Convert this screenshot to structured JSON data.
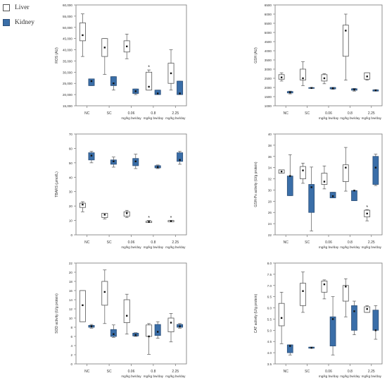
{
  "legend": [
    {
      "label": "Liver",
      "color": "#ffffff",
      "stroke": "#555555"
    },
    {
      "label": "Kidney",
      "color": "#3a6ea8",
      "stroke": "#2c4f78"
    }
  ],
  "categories": [
    {
      "line1": "NC",
      "line2": ""
    },
    {
      "line1": "SC",
      "line2": ""
    },
    {
      "line1": "0.06",
      "line2": "mg/kg bw/day"
    },
    {
      "line1": "0.8",
      "line2": "mg/kg bw/day"
    },
    {
      "line1": "2.25",
      "line2": "mg/kg bw/day"
    }
  ],
  "chart_data": [
    {
      "type": "boxplot",
      "id": "ros",
      "ylabel": "ROS (AU)",
      "ylim": [
        15000,
        60000
      ],
      "yticks": [
        15000,
        20000,
        25000,
        30000,
        35000,
        40000,
        45000,
        50000,
        55000,
        60000
      ],
      "ytick_labels": [
        "15,000",
        "20,000",
        "25,000",
        "30,000",
        "35,000",
        "40,000",
        "45,000",
        "50,000",
        "55,000",
        "60,000"
      ],
      "series": [
        {
          "name": "Liver",
          "boxes": [
            {
              "min": 37000,
              "q1": 44000,
              "median": 46500,
              "q3": 52000,
              "max": 56000,
              "mean": 46500
            },
            {
              "min": 29000,
              "q1": 37000,
              "median": 41000,
              "q3": 45000,
              "max": 45000,
              "mean": 41500
            },
            {
              "min": 36000,
              "q1": 39000,
              "median": 41500,
              "q3": 44000,
              "max": 47000,
              "mean": 41500
            },
            {
              "min": 22000,
              "q1": 22000,
              "median": 23500,
              "q3": 30000,
              "max": 31000,
              "mean": 23500,
              "sig": "*"
            },
            {
              "min": 22000,
              "q1": 25000,
              "median": 29500,
              "q3": 34000,
              "max": 40000,
              "mean": 29500
            }
          ]
        },
        {
          "name": "Kidney",
          "boxes": [
            {
              "min": 24000,
              "q1": 24000,
              "median": 26000,
              "q3": 27000,
              "max": 27000,
              "mean": 26000
            },
            {
              "min": 22000,
              "q1": 24000,
              "median": 25000,
              "q3": 28000,
              "max": 28000,
              "mean": 25000
            },
            {
              "min": 20000,
              "q1": 20500,
              "median": 21500,
              "q3": 22500,
              "max": 22500,
              "mean": 21500
            },
            {
              "min": 20000,
              "q1": 20000,
              "median": 20500,
              "q3": 22000,
              "max": 22000,
              "mean": 20500
            },
            {
              "min": 20000,
              "q1": 20000,
              "median": 20500,
              "q3": 26000,
              "max": 26000,
              "mean": 20500
            }
          ]
        }
      ]
    },
    {
      "type": "boxplot",
      "id": "gsh",
      "ylabel": "GSH (AU)",
      "ylim": [
        1000,
        6500
      ],
      "yticks": [
        1000,
        1500,
        2000,
        2500,
        3000,
        3500,
        4000,
        4500,
        5000,
        5500,
        6000,
        6500
      ],
      "ytick_labels": [
        "1000",
        "1500",
        "2000",
        "2500",
        "3000",
        "3500",
        "4000",
        "4500",
        "5000",
        "5500",
        "6000",
        "6500"
      ],
      "series": [
        {
          "name": "Liver",
          "boxes": [
            {
              "min": 2350,
              "q1": 2450,
              "median": 2550,
              "q3": 2700,
              "max": 2800,
              "mean": 2550
            },
            {
              "min": 2100,
              "q1": 2400,
              "median": 2500,
              "q3": 3000,
              "max": 3400,
              "mean": 2500
            },
            {
              "min": 2200,
              "q1": 2350,
              "median": 2500,
              "q3": 2700,
              "max": 2750,
              "mean": 2450
            },
            {
              "min": 2400,
              "q1": 3700,
              "median": 5100,
              "q3": 5400,
              "max": 6000,
              "mean": 5100
            },
            {
              "min": 2400,
              "q1": 2450,
              "median": 2600,
              "q3": 2800,
              "max": 2800,
              "mean": 2600
            }
          ]
        },
        {
          "name": "Kidney",
          "boxes": [
            {
              "min": 1650,
              "q1": 1700,
              "median": 1730,
              "q3": 1780,
              "max": 1800,
              "mean": 1730
            },
            {
              "min": 1950,
              "q1": 1950,
              "median": 1970,
              "q3": 1990,
              "max": 2000,
              "mean": 1970
            },
            {
              "min": 1900,
              "q1": 1920,
              "median": 1960,
              "q3": 2000,
              "max": 2000,
              "mean": 1960
            },
            {
              "min": 1800,
              "q1": 1850,
              "median": 1880,
              "q3": 1930,
              "max": 1950,
              "mean": 1880
            },
            {
              "min": 1800,
              "q1": 1800,
              "median": 1840,
              "q3": 1870,
              "max": 1880,
              "mean": 1840
            }
          ]
        }
      ]
    },
    {
      "type": "boxplot",
      "id": "tbars",
      "ylabel": "TBARS (µmol/L)",
      "ylim": [
        0,
        70
      ],
      "yticks": [
        0,
        10,
        20,
        30,
        40,
        50,
        60,
        70
      ],
      "ytick_labels": [
        "0",
        "10",
        "20",
        "30",
        "40",
        "50",
        "60",
        "70"
      ],
      "series": [
        {
          "name": "Liver",
          "boxes": [
            {
              "min": 16,
              "q1": 19,
              "median": 21,
              "q3": 22,
              "max": 23,
              "mean": 21
            },
            {
              "min": 11,
              "q1": 12,
              "median": 14,
              "q3": 15,
              "max": 15,
              "mean": 14
            },
            {
              "min": 12,
              "q1": 13,
              "median": 15,
              "q3": 16,
              "max": 17,
              "mean": 15
            },
            {
              "min": 8.5,
              "q1": 8.5,
              "median": 9,
              "q3": 9.5,
              "max": 10,
              "mean": 9,
              "sig": "*"
            },
            {
              "min": 9,
              "q1": 9,
              "median": 9.5,
              "q3": 10,
              "max": 10,
              "mean": 9.5,
              "sig": "*"
            }
          ]
        },
        {
          "name": "Kidney",
          "boxes": [
            {
              "min": 50,
              "q1": 52,
              "median": 55,
              "q3": 57,
              "max": 58,
              "mean": 55
            },
            {
              "min": 47,
              "q1": 49,
              "median": 51,
              "q3": 52,
              "max": 54,
              "mean": 51
            },
            {
              "min": 46,
              "q1": 48,
              "median": 51,
              "q3": 53,
              "max": 56,
              "mean": 51
            },
            {
              "min": 46,
              "q1": 46.5,
              "median": 47,
              "q3": 48,
              "max": 48.5,
              "mean": 47
            },
            {
              "min": 49,
              "q1": 51,
              "median": 52,
              "q3": 57,
              "max": 58,
              "mean": 52
            }
          ]
        }
      ]
    },
    {
      "type": "boxplot",
      "id": "gshpx",
      "ylabel": "GSH-Px activity (U/g protein)",
      "ylim": [
        22,
        40
      ],
      "yticks": [
        22,
        24,
        26,
        28,
        30,
        32,
        34,
        36,
        38,
        40
      ],
      "ytick_labels": [
        "22",
        "24",
        "26",
        "28",
        "30",
        "32",
        "34",
        "36",
        "38",
        "40"
      ],
      "series": [
        {
          "name": "Liver",
          "boxes": [
            {
              "min": 33,
              "q1": 33,
              "median": 33.3,
              "q3": 33.6,
              "max": 33.6,
              "mean": 33.3
            },
            {
              "min": 31.2,
              "q1": 32,
              "median": 33.5,
              "q3": 34.2,
              "max": 34.8,
              "mean": 33.5
            },
            {
              "min": 30.2,
              "q1": 31,
              "median": 31.5,
              "q3": 33,
              "max": 34.3,
              "mean": 31.5
            },
            {
              "min": 29.8,
              "q1": 31.5,
              "median": 34,
              "q3": 34.5,
              "max": 37.6,
              "mean": 34
            },
            {
              "min": 24.5,
              "q1": 25.2,
              "median": 25.8,
              "q3": 26.4,
              "max": 26.5,
              "mean": 25.8,
              "sig": "*"
            }
          ]
        },
        {
          "name": "Kidney",
          "boxes": [
            {
              "min": 29,
              "q1": 29,
              "median": 32.5,
              "q3": 32.5,
              "max": 36.3,
              "mean": 32.5
            },
            {
              "min": 22.7,
              "q1": 26,
              "median": 30.5,
              "q3": 31,
              "max": 34.1,
              "mean": 30.5
            },
            {
              "min": 28.6,
              "q1": 28.6,
              "median": 28.9,
              "q3": 29.6,
              "max": 29.6,
              "mean": 28.9
            },
            {
              "min": 28.1,
              "q1": 28.1,
              "median": 29.9,
              "q3": 29.9,
              "max": 29.9,
              "mean": 29.9
            },
            {
              "min": 30.8,
              "q1": 31,
              "median": 34,
              "q3": 36,
              "max": 36.4,
              "mean": 34
            }
          ]
        }
      ]
    },
    {
      "type": "boxplot",
      "id": "sod",
      "ylabel": "SOD activity (U/g protein)",
      "ylim": [
        0,
        22
      ],
      "yticks": [
        0,
        2,
        4,
        6,
        8,
        10,
        12,
        14,
        16,
        18,
        20,
        22
      ],
      "ytick_labels": [
        "0",
        "2",
        "4",
        "6",
        "8",
        "10",
        "12",
        "14",
        "16",
        "18",
        "20",
        "22"
      ],
      "series": [
        {
          "name": "Liver",
          "boxes": [
            {
              "min": 9.2,
              "q1": 9.2,
              "median": 12.8,
              "q3": 16,
              "max": 16,
              "mean": 12.8
            },
            {
              "min": 8.8,
              "q1": 12.8,
              "median": 15.7,
              "q3": 18,
              "max": 20.5,
              "mean": 15.7
            },
            {
              "min": 6.5,
              "q1": 9,
              "median": 10.5,
              "q3": 14,
              "max": 15.2,
              "mean": 10.5
            },
            {
              "min": 2.1,
              "q1": 6,
              "median": 6,
              "q3": 8.5,
              "max": 8.8,
              "mean": 6
            },
            {
              "min": 4.8,
              "q1": 7,
              "median": 9,
              "q3": 10,
              "max": 11,
              "mean": 9
            }
          ]
        },
        {
          "name": "Kidney",
          "boxes": [
            {
              "min": 7.8,
              "q1": 8,
              "median": 8.2,
              "q3": 8.4,
              "max": 8.6,
              "mean": 8.2
            },
            {
              "min": 5.8,
              "q1": 6,
              "median": 6.5,
              "q3": 7.5,
              "max": 8.5,
              "mean": 6.5
            },
            {
              "min": 6,
              "q1": 6.1,
              "median": 6.3,
              "q3": 6.7,
              "max": 6.8,
              "mean": 6.3
            },
            {
              "min": 5.6,
              "q1": 6.2,
              "median": 7,
              "q3": 8.6,
              "max": 9.2,
              "mean": 7
            },
            {
              "min": 7.8,
              "q1": 8,
              "median": 8.2,
              "q3": 8.6,
              "max": 8.8,
              "mean": 8.2
            }
          ]
        }
      ]
    },
    {
      "type": "boxplot",
      "id": "cat",
      "ylabel": "CAT activity (U/g protein)",
      "ylim": [
        3.5,
        8.0
      ],
      "yticks": [
        3.5,
        4.0,
        4.5,
        5.0,
        5.5,
        6.0,
        6.5,
        7.0,
        7.5,
        8.0
      ],
      "ytick_labels": [
        "3.5",
        "4.0",
        "4.5",
        "5.0",
        "5.5",
        "6.0",
        "6.5",
        "7.0",
        "7.5",
        "8.0"
      ],
      "series": [
        {
          "name": "Liver",
          "boxes": [
            {
              "min": 4.4,
              "q1": 5.2,
              "median": 5.55,
              "q3": 6.2,
              "max": 6.7,
              "mean": 5.55
            },
            {
              "min": 5.8,
              "q1": 6.1,
              "median": 6.75,
              "q3": 7.1,
              "max": 7.6,
              "mean": 6.75
            },
            {
              "min": 6.4,
              "q1": 6.7,
              "median": 7.05,
              "q3": 7.2,
              "max": 7.25,
              "mean": 7.05
            },
            {
              "min": 5.6,
              "q1": 6.3,
              "median": 6.95,
              "q3": 7.0,
              "max": 7.3,
              "mean": 6.95
            },
            {
              "min": 5.8,
              "q1": 5.8,
              "median": 5.95,
              "q3": 6.05,
              "max": 6.1,
              "mean": 5.95
            }
          ]
        },
        {
          "name": "Kidney",
          "boxes": [
            {
              "min": 3.9,
              "q1": 4.0,
              "median": 4.3,
              "q3": 4.35,
              "max": 4.35,
              "mean": 4.3
            },
            {
              "min": 4.2,
              "q1": 4.2,
              "median": 4.22,
              "q3": 4.25,
              "max": 4.25,
              "mean": 4.22
            },
            {
              "min": 3.9,
              "q1": 4.3,
              "median": 5.5,
              "q3": 5.6,
              "max": 6.5,
              "mean": 5.5
            },
            {
              "min": 4.8,
              "q1": 5.0,
              "median": 5.85,
              "q3": 6.1,
              "max": 6.3,
              "mean": 5.85
            },
            {
              "min": 4.6,
              "q1": 5.0,
              "median": 5.0,
              "q3": 5.9,
              "max": 6.1,
              "mean": 5.0
            }
          ]
        }
      ]
    }
  ]
}
